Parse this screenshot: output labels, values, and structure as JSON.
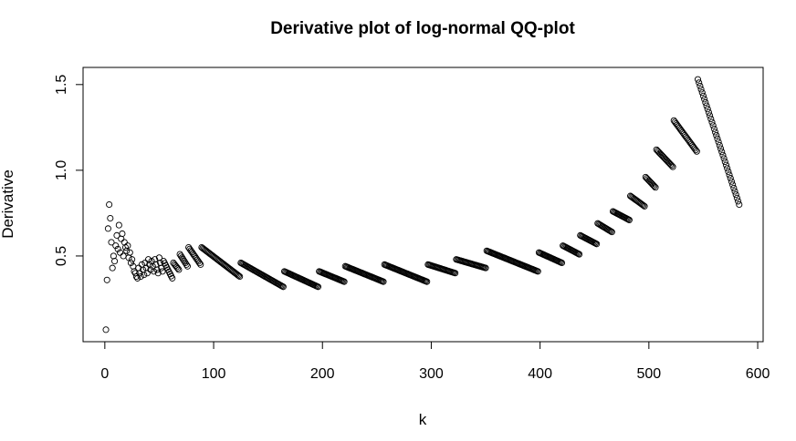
{
  "chart_data": {
    "type": "scatter",
    "title": "Derivative plot of log-normal QQ-plot",
    "xlabel": "k",
    "ylabel": "Derivative",
    "xlim": [
      -20,
      605
    ],
    "ylim": [
      0.0,
      1.6
    ],
    "x_ticks": [
      0,
      100,
      200,
      300,
      400,
      500,
      600
    ],
    "y_ticks": [
      0.5,
      1.0,
      1.5
    ],
    "x_tick_labels": [
      "0",
      "100",
      "200",
      "300",
      "400",
      "500",
      "600"
    ],
    "y_tick_labels": [
      "0.5",
      "1.0",
      "1.5"
    ],
    "grid": false,
    "legend": "none",
    "marker": "open-circle",
    "color": "#000000",
    "isolated_points": [
      {
        "x": 1,
        "y": 0.07
      },
      {
        "x": 2,
        "y": 0.36
      },
      {
        "x": 3,
        "y": 0.66
      },
      {
        "x": 4,
        "y": 0.8
      },
      {
        "x": 5,
        "y": 0.72
      },
      {
        "x": 6,
        "y": 0.58
      },
      {
        "x": 7,
        "y": 0.43
      },
      {
        "x": 8,
        "y": 0.5
      },
      {
        "x": 9,
        "y": 0.47
      },
      {
        "x": 10,
        "y": 0.56
      },
      {
        "x": 11,
        "y": 0.62
      },
      {
        "x": 12,
        "y": 0.54
      },
      {
        "x": 13,
        "y": 0.68
      },
      {
        "x": 14,
        "y": 0.52
      },
      {
        "x": 15,
        "y": 0.6
      },
      {
        "x": 16,
        "y": 0.63
      },
      {
        "x": 17,
        "y": 0.5
      },
      {
        "x": 18,
        "y": 0.58
      },
      {
        "x": 19,
        "y": 0.55
      },
      {
        "x": 20,
        "y": 0.53
      },
      {
        "x": 21,
        "y": 0.56
      },
      {
        "x": 22,
        "y": 0.49
      },
      {
        "x": 23,
        "y": 0.52
      },
      {
        "x": 24,
        "y": 0.46
      },
      {
        "x": 25,
        "y": 0.48
      },
      {
        "x": 26,
        "y": 0.44
      },
      {
        "x": 27,
        "y": 0.41
      },
      {
        "x": 28,
        "y": 0.4
      },
      {
        "x": 29,
        "y": 0.38
      },
      {
        "x": 30,
        "y": 0.37
      },
      {
        "x": 31,
        "y": 0.43
      },
      {
        "x": 32,
        "y": 0.4
      },
      {
        "x": 33,
        "y": 0.38
      },
      {
        "x": 34,
        "y": 0.45
      },
      {
        "x": 35,
        "y": 0.42
      },
      {
        "x": 36,
        "y": 0.39
      },
      {
        "x": 37,
        "y": 0.46
      },
      {
        "x": 38,
        "y": 0.43
      },
      {
        "x": 39,
        "y": 0.4
      },
      {
        "x": 40,
        "y": 0.48
      },
      {
        "x": 41,
        "y": 0.45
      },
      {
        "x": 42,
        "y": 0.42
      },
      {
        "x": 43,
        "y": 0.47
      },
      {
        "x": 44,
        "y": 0.44
      },
      {
        "x": 45,
        "y": 0.41
      },
      {
        "x": 46,
        "y": 0.48
      },
      {
        "x": 47,
        "y": 0.45
      },
      {
        "x": 48,
        "y": 0.42
      },
      {
        "x": 49,
        "y": 0.4
      },
      {
        "x": 50,
        "y": 0.49
      },
      {
        "x": 51,
        "y": 0.46
      },
      {
        "x": 52,
        "y": 0.43
      },
      {
        "x": 53,
        "y": 0.41
      }
    ],
    "segments": [
      {
        "x_start": 54,
        "x_end": 62,
        "y_start": 0.47,
        "y_end": 0.37
      },
      {
        "x_start": 63,
        "x_end": 68,
        "y_start": 0.46,
        "y_end": 0.42
      },
      {
        "x_start": 69,
        "x_end": 76,
        "y_start": 0.51,
        "y_end": 0.44
      },
      {
        "x_start": 77,
        "x_end": 88,
        "y_start": 0.55,
        "y_end": 0.45
      },
      {
        "x_start": 89,
        "x_end": 124,
        "y_start": 0.55,
        "y_end": 0.38
      },
      {
        "x_start": 125,
        "x_end": 164,
        "y_start": 0.46,
        "y_end": 0.32
      },
      {
        "x_start": 165,
        "x_end": 196,
        "y_start": 0.41,
        "y_end": 0.32
      },
      {
        "x_start": 197,
        "x_end": 220,
        "y_start": 0.41,
        "y_end": 0.35
      },
      {
        "x_start": 221,
        "x_end": 256,
        "y_start": 0.44,
        "y_end": 0.35
      },
      {
        "x_start": 257,
        "x_end": 296,
        "y_start": 0.45,
        "y_end": 0.35
      },
      {
        "x_start": 297,
        "x_end": 322,
        "y_start": 0.45,
        "y_end": 0.4
      },
      {
        "x_start": 323,
        "x_end": 350,
        "y_start": 0.48,
        "y_end": 0.43
      },
      {
        "x_start": 351,
        "x_end": 398,
        "y_start": 0.53,
        "y_end": 0.41
      },
      {
        "x_start": 399,
        "x_end": 420,
        "y_start": 0.52,
        "y_end": 0.46
      },
      {
        "x_start": 421,
        "x_end": 436,
        "y_start": 0.56,
        "y_end": 0.51
      },
      {
        "x_start": 437,
        "x_end": 452,
        "y_start": 0.62,
        "y_end": 0.57
      },
      {
        "x_start": 453,
        "x_end": 466,
        "y_start": 0.69,
        "y_end": 0.64
      },
      {
        "x_start": 467,
        "x_end": 482,
        "y_start": 0.76,
        "y_end": 0.71
      },
      {
        "x_start": 483,
        "x_end": 496,
        "y_start": 0.85,
        "y_end": 0.79
      },
      {
        "x_start": 497,
        "x_end": 506,
        "y_start": 0.96,
        "y_end": 0.9
      },
      {
        "x_start": 507,
        "x_end": 522,
        "y_start": 1.12,
        "y_end": 1.02
      },
      {
        "x_start": 523,
        "x_end": 544,
        "y_start": 1.29,
        "y_end": 1.11
      },
      {
        "x_start": 545,
        "x_end": 583,
        "y_start": 1.53,
        "y_end": 0.8
      }
    ]
  }
}
